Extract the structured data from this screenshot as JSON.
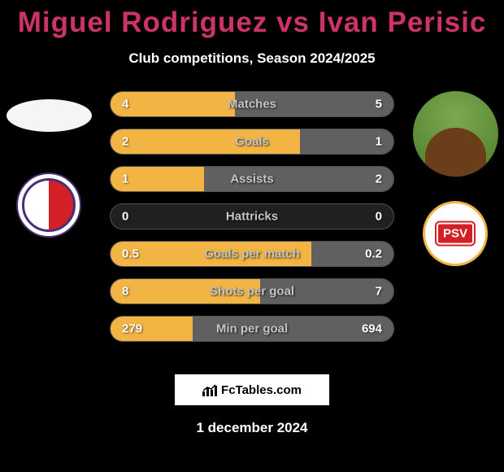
{
  "title": "Miguel Rodriguez vs Ivan Perisic",
  "subtitle": "Club competitions, Season 2024/2025",
  "footer_brand": "FcTables.com",
  "footer_date": "1 december 2024",
  "colors": {
    "title": "#cc3366",
    "text": "#ffffff",
    "row_border": "#505050",
    "row_bg": "#202020",
    "bar_left": "#f2b544",
    "bar_right": "#606060",
    "label": "#c5c5c5"
  },
  "left_player": {
    "club": "FC Utrecht"
  },
  "right_player": {
    "club": "PSV"
  },
  "rows": [
    {
      "label": "Matches",
      "left": "4",
      "right": "5",
      "left_pct": 44,
      "right_pct": 56
    },
    {
      "label": "Goals",
      "left": "2",
      "right": "1",
      "left_pct": 67,
      "right_pct": 33
    },
    {
      "label": "Assists",
      "left": "1",
      "right": "2",
      "left_pct": 33,
      "right_pct": 67
    },
    {
      "label": "Hattricks",
      "left": "0",
      "right": "0",
      "left_pct": 0,
      "right_pct": 0
    },
    {
      "label": "Goals per match",
      "left": "0.5",
      "right": "0.2",
      "left_pct": 71,
      "right_pct": 29
    },
    {
      "label": "Shots per goal",
      "left": "8",
      "right": "7",
      "left_pct": 53,
      "right_pct": 47
    },
    {
      "label": "Min per goal",
      "left": "279",
      "right": "694",
      "left_pct": 29,
      "right_pct": 71
    }
  ]
}
